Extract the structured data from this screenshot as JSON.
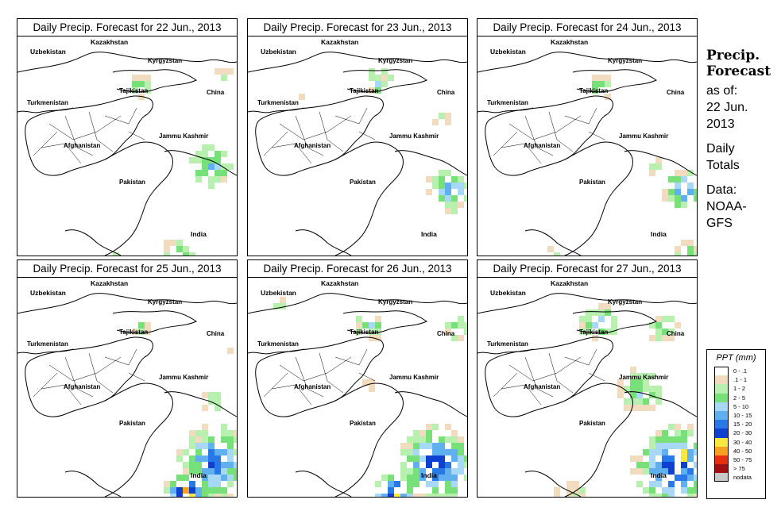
{
  "panels": [
    {
      "title": "Daily Precip. Forecast for  22 Jun., 2013",
      "day": 0
    },
    {
      "title": "Daily Precip. Forecast for  23 Jun., 2013",
      "day": 1
    },
    {
      "title": "Daily Precip. Forecast for  24 Jun., 2013",
      "day": 2
    },
    {
      "title": "Daily Precip. Forecast for  25 Jun., 2013",
      "day": 3
    },
    {
      "title": "Daily Precip. Forecast for  26 Jun., 2013",
      "day": 4
    },
    {
      "title": "Daily Precip. Forecast for  27 Jun., 2013",
      "day": 5
    }
  ],
  "map_labels": {
    "kazakhstan": "Kazakhstan",
    "uzbekistan": "Uzbekistan",
    "kyrgyzstan": "Kyrgyzstan",
    "tajikistan": "Tajikistan",
    "china": "China",
    "turkmenistan": "Turkmenistan",
    "jammu_kashmir": "Jammu Kashmir",
    "afghanistan": "Afghanistan",
    "pakistan": "Pakistan",
    "india": "India"
  },
  "side_info": {
    "title_line1": "Precip.",
    "title_line2": "Forecast",
    "as_of": "as of:",
    "date_line1": "22 Jun.",
    "date_line2": "2013",
    "daily_line1": "Daily",
    "daily_line2": "Totals",
    "data_line1": "Data:",
    "data_line2": "NOAA-",
    "data_line3": "GFS"
  },
  "legend": {
    "title": "PPT (mm)",
    "items": [
      {
        "label": "0 - .1",
        "color": "#ffffff"
      },
      {
        "label": ".1 - 1",
        "color": "#f2dcc0"
      },
      {
        "label": "1 - 2",
        "color": "#b8f0b0"
      },
      {
        "label": "2 - 5",
        "color": "#78e078"
      },
      {
        "label": "5 - 10",
        "color": "#a8d8f8"
      },
      {
        "label": "10 - 15",
        "color": "#60b0f0"
      },
      {
        "label": "15 - 20",
        "color": "#2878e8"
      },
      {
        "label": "20 - 30",
        "color": "#1040d0"
      },
      {
        "label": "30 - 40",
        "color": "#f8e840"
      },
      {
        "label": "40 - 50",
        "color": "#f8a020"
      },
      {
        "label": "50 - 75",
        "color": "#e83010"
      },
      {
        "label": "> 75",
        "color": "#a01010"
      },
      {
        "label": "nodata",
        "color": "#c8c8c8"
      }
    ]
  }
}
